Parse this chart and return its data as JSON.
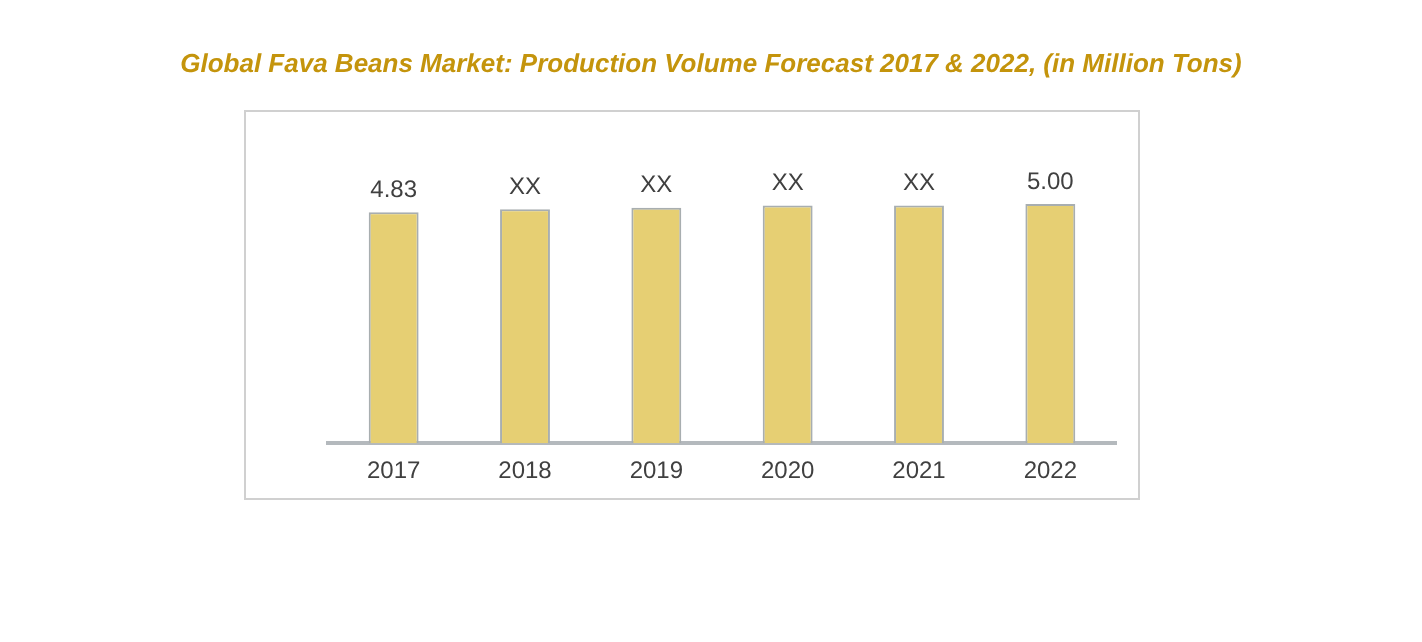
{
  "chart_data": {
    "type": "bar",
    "title": "Global Fava Beans Market: Production Volume Forecast 2017 & 2022, (in Million Tons)",
    "categories": [
      "2017",
      "2018",
      "2019",
      "2020",
      "2021",
      "2022"
    ],
    "values": [
      4.83,
      4.89,
      4.92,
      4.97,
      4.97,
      5.0
    ],
    "value_labels": [
      "4.83",
      "XX",
      "XX",
      "XX",
      "XX",
      "5.00"
    ],
    "color": "#e6cf73",
    "grid": false,
    "legend": false,
    "tick_labels": "x"
  }
}
